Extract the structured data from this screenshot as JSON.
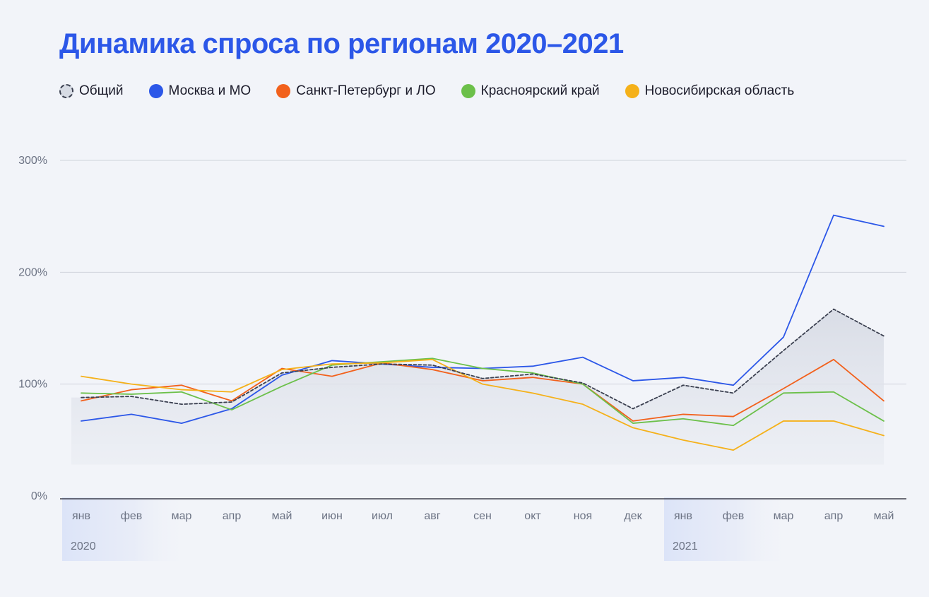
{
  "title": "Динамика спроса по регионам 2020–2021",
  "legend": [
    {
      "label": "Общий",
      "color": "#3b4050",
      "style": "dashed"
    },
    {
      "label": "Москва и МО",
      "color": "#2c57e8",
      "style": "solid"
    },
    {
      "label": "Санкт-Петербург и ЛО",
      "color": "#f2611c",
      "style": "solid"
    },
    {
      "label": "Красноярский край",
      "color": "#6cc04a",
      "style": "solid"
    },
    {
      "label": "Новосибирская область",
      "color": "#f5b11a",
      "style": "solid"
    }
  ],
  "chart_data": {
    "type": "line",
    "title": "Динамика спроса по регионам 2020–2021",
    "xlabel": "",
    "ylabel": "",
    "ylim": [
      0,
      300
    ],
    "yticks": [
      "0%",
      "100%",
      "200%",
      "300%"
    ],
    "yticks_values": [
      0,
      100,
      200,
      300
    ],
    "categories": [
      "янв",
      "фев",
      "мар",
      "апр",
      "май",
      "июн",
      "июл",
      "авг",
      "сен",
      "окт",
      "ноя",
      "дек",
      "янв",
      "фев",
      "мар",
      "апр",
      "май"
    ],
    "year_labels": [
      {
        "label": "2020",
        "start_index": 0
      },
      {
        "label": "2021",
        "start_index": 12
      }
    ],
    "grid": true,
    "legend_position": "top-left",
    "series": [
      {
        "name": "Общий",
        "color": "#3b4050",
        "style": "dashed",
        "area": true,
        "values": [
          88,
          89,
          82,
          84,
          110,
          115,
          118,
          117,
          105,
          109,
          101,
          78,
          99,
          92,
          130,
          167,
          143
        ]
      },
      {
        "name": "Москва и МО",
        "color": "#2c57e8",
        "style": "solid",
        "values": [
          67,
          73,
          65,
          78,
          108,
          121,
          118,
          115,
          114,
          116,
          124,
          103,
          106,
          99,
          142,
          251,
          241
        ]
      },
      {
        "name": "Санкт-Петербург и ЛО",
        "color": "#f2611c",
        "style": "solid",
        "values": [
          85,
          95,
          99,
          85,
          114,
          107,
          119,
          113,
          103,
          106,
          100,
          67,
          73,
          71,
          96,
          122,
          85
        ]
      },
      {
        "name": "Красноярский край",
        "color": "#6cc04a",
        "style": "solid",
        "values": [
          92,
          91,
          93,
          77,
          98,
          117,
          120,
          123,
          114,
          110,
          100,
          65,
          69,
          63,
          92,
          93,
          67
        ]
      },
      {
        "name": "Новосибирская область",
        "color": "#f5b11a",
        "style": "solid",
        "values": [
          107,
          100,
          95,
          93,
          113,
          118,
          119,
          122,
          100,
          92,
          82,
          61,
          50,
          41,
          67,
          67,
          54
        ]
      }
    ]
  }
}
